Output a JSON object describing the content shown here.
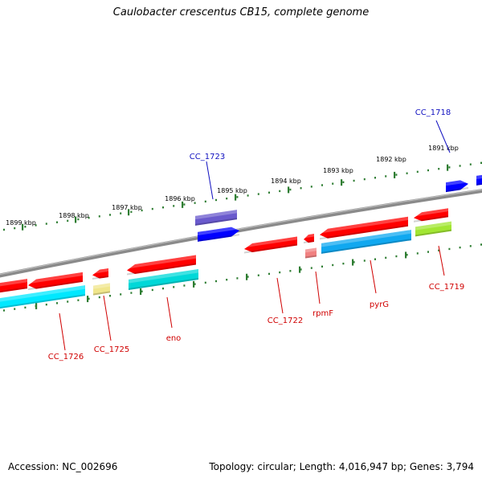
{
  "title": "Caulobacter crescentus CB15, complete genome",
  "footer": {
    "accession": "Accession: NC_002696",
    "summary": "Topology: circular; Length: 4,016,947 bp; Genes: 3,794"
  },
  "colors": {
    "backbone": "#8a8a8a",
    "tick": "#2e7d32",
    "gene_forward": "#ff0000",
    "gene_reverse": "#0000ff",
    "cds_forward": "#00d8d8",
    "cds_cyan": "#00e8ff",
    "cds_blue": "#10a8f0",
    "cds_violet": "#6a5acd",
    "misc_yellow": "#f0e68c",
    "misc_lime": "#a2e633",
    "label_red": "#d00000",
    "label_blue": "#1010c0"
  },
  "kbp_labels": [
    "1899 kbp",
    "1898 kbp",
    "1897 kbp",
    "1896 kbp",
    "1895 kbp",
    "1894 kbp",
    "1893 kbp",
    "1892 kbp",
    "1891 kbp"
  ],
  "gene_labels": [
    {
      "text": "CC_1726",
      "strand": "reverse"
    },
    {
      "text": "CC_1725",
      "strand": "reverse"
    },
    {
      "text": "eno",
      "strand": "reverse"
    },
    {
      "text": "CC_1723",
      "strand": "forward"
    },
    {
      "text": "CC_1722",
      "strand": "reverse"
    },
    {
      "text": "rpmF",
      "strand": "reverse"
    },
    {
      "text": "pyrG",
      "strand": "reverse"
    },
    {
      "text": "CC_1719",
      "strand": "reverse"
    },
    {
      "text": "CC_1718",
      "strand": "forward"
    }
  ]
}
